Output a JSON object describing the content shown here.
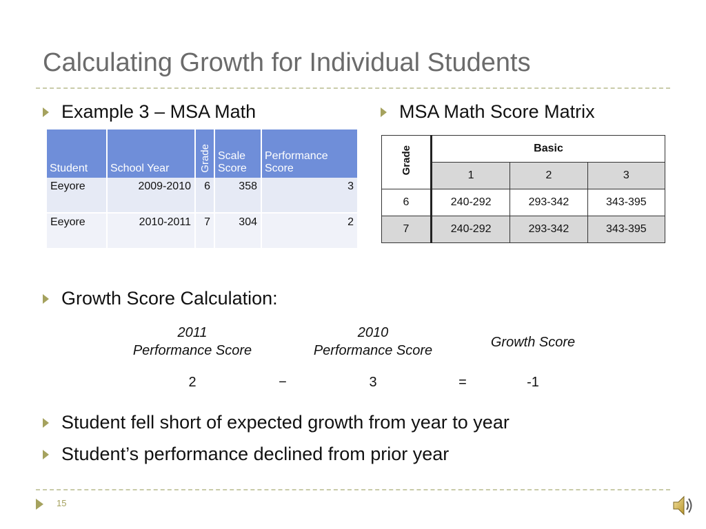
{
  "slide": {
    "title": "Calculating Growth for Individual Students",
    "page_number": "15"
  },
  "bullets": {
    "example": "Example 3 – MSA Math",
    "matrix": "MSA Math Score Matrix",
    "calc": "Growth Score Calculation:",
    "conclusion1": "Student fell short of expected growth from year to year",
    "conclusion2": "Student’s performance declined from prior year"
  },
  "student_table": {
    "headers": [
      "Student",
      "School Year",
      "Grade",
      "Scale Score",
      "Performance Score"
    ],
    "header_lines": {
      "scale": [
        "Scale",
        "Score"
      ],
      "performance": [
        "Performance",
        "Score"
      ]
    },
    "rows": [
      [
        "Eeyore",
        "2009-2010",
        "6",
        "358",
        "3"
      ],
      [
        "Eeyore",
        "2010-2011",
        "7",
        "304",
        "2"
      ]
    ]
  },
  "matrix_table": {
    "grade_label": "Grade",
    "level_label": "Basic",
    "levels": [
      "1",
      "2",
      "3"
    ],
    "rows": [
      [
        "6",
        "240-292",
        "293-342",
        "343-395"
      ],
      [
        "7",
        "240-292",
        "293-342",
        "343-395"
      ]
    ]
  },
  "calculation": {
    "label_2011": [
      "2011",
      "Performance Score"
    ],
    "label_2010": [
      "2010",
      "Performance Score"
    ],
    "label_growth": "Growth Score",
    "value_2011": "2",
    "operator": "−",
    "value_2010": "3",
    "equals": "=",
    "result": "-1"
  },
  "icons": {
    "bullet": "arrow-right-icon",
    "speaker": "speaker-icon"
  },
  "colors": {
    "accent": "#a5a25e",
    "table_header": "#6f8ed9",
    "table_row": "#e6eaf5",
    "matrix_gray": "#d8d8d8",
    "title": "#6b6b6b"
  }
}
